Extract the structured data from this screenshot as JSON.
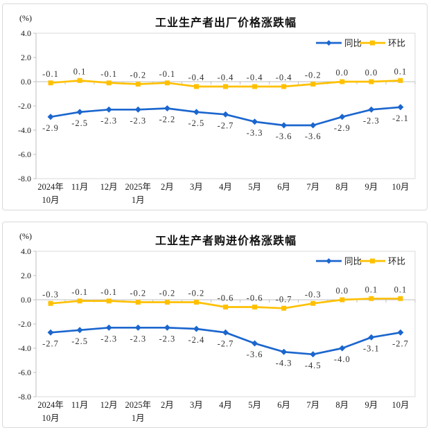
{
  "page": {
    "background": "#ffffff",
    "panel_border": "#d9d9d9"
  },
  "chart_data": [
    {
      "type": "line",
      "title": "工业生产者出厂价格涨跌幅",
      "unit_label": "(%)",
      "xlabel": "",
      "ylabel": "(%)",
      "ylim": [
        -8,
        4
      ],
      "ytick_step": 2,
      "ytick_labels": [
        "4.0",
        "2.0",
        "0.0",
        "-2.0",
        "-4.0",
        "-6.0",
        "-8.0"
      ],
      "grid": false,
      "legend_position": "top-right",
      "categories": [
        "2024年\n10月",
        "11月",
        "12月",
        "2025年\n1月",
        "2月",
        "3月",
        "4月",
        "5月",
        "6月",
        "7月",
        "8月",
        "9月",
        "10月"
      ],
      "series": [
        {
          "name": "同比",
          "color": "#1B66CE",
          "marker": "diamond",
          "label_position": "below",
          "values": [
            -2.9,
            -2.5,
            -2.3,
            -2.3,
            -2.2,
            -2.5,
            -2.7,
            -3.3,
            -3.6,
            -3.6,
            -2.9,
            -2.3,
            -2.1
          ]
        },
        {
          "name": "环比",
          "color": "#FFC000",
          "marker": "square",
          "label_position": "above",
          "values": [
            -0.1,
            0.1,
            -0.1,
            -0.2,
            -0.1,
            -0.4,
            -0.4,
            -0.4,
            -0.4,
            -0.2,
            0.0,
            0.0,
            0.1
          ]
        }
      ]
    },
    {
      "type": "line",
      "title": "工业生产者购进价格涨跌幅",
      "unit_label": "(%)",
      "xlabel": "",
      "ylabel": "(%)",
      "ylim": [
        -8,
        4
      ],
      "ytick_step": 2,
      "ytick_labels": [
        "4.0",
        "2.0",
        "0.0",
        "-2.0",
        "-4.0",
        "-6.0",
        "-8.0"
      ],
      "grid": false,
      "legend_position": "top-right",
      "categories": [
        "2024年\n10月",
        "11月",
        "12月",
        "2025年\n1月",
        "2月",
        "3月",
        "4月",
        "5月",
        "6月",
        "7月",
        "8月",
        "9月",
        "10月"
      ],
      "series": [
        {
          "name": "同比",
          "color": "#1B66CE",
          "marker": "diamond",
          "label_position": "below",
          "values": [
            -2.7,
            -2.5,
            -2.3,
            -2.3,
            -2.3,
            -2.4,
            -2.7,
            -3.6,
            -4.3,
            -4.5,
            -4.0,
            -3.1,
            -2.7
          ]
        },
        {
          "name": "环比",
          "color": "#FFC000",
          "marker": "square",
          "label_position": "above",
          "values": [
            -0.3,
            -0.1,
            -0.1,
            -0.2,
            -0.2,
            -0.2,
            -0.6,
            -0.6,
            -0.7,
            -0.3,
            0.0,
            0.1,
            0.1
          ]
        }
      ]
    }
  ]
}
